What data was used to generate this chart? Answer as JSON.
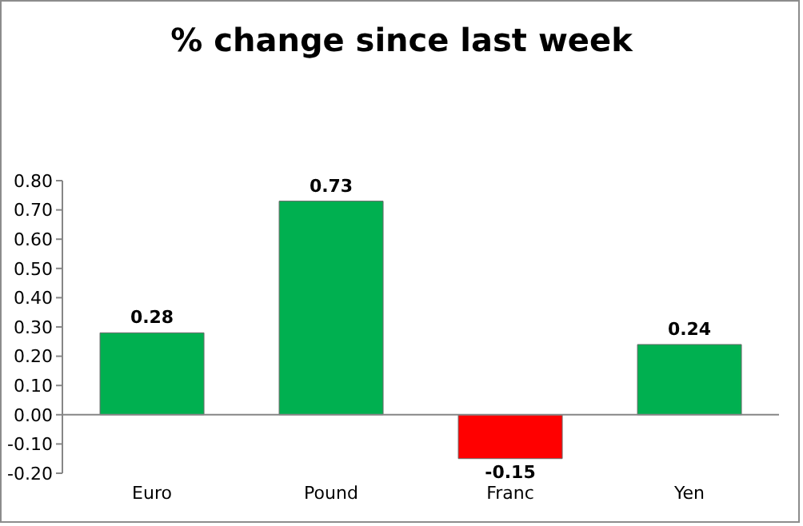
{
  "chart_data": {
    "type": "bar",
    "title": "% change since last week",
    "categories": [
      "Euro",
      "Pound",
      "Franc",
      "Yen"
    ],
    "values": [
      0.28,
      0.73,
      -0.15,
      0.24
    ],
    "colors": [
      "#00b050",
      "#00b050",
      "#ff0000",
      "#00b050"
    ],
    "ylim": [
      -0.2,
      0.8
    ],
    "yticks": [
      {
        "value": -0.2,
        "label": "-0.20"
      },
      {
        "value": -0.1,
        "label": "-0.10"
      },
      {
        "value": 0,
        "label": "0.00"
      },
      {
        "value": 0.1,
        "label": "0.10"
      },
      {
        "value": 0.2,
        "label": "0.20"
      },
      {
        "value": 0.3,
        "label": "0.30"
      },
      {
        "value": 0.4,
        "label": "0.40"
      },
      {
        "value": 0.5,
        "label": "0.50"
      },
      {
        "value": 0.6,
        "label": "0.60"
      },
      {
        "value": 0.7,
        "label": "0.70"
      },
      {
        "value": 0.8,
        "label": "0.80"
      }
    ],
    "ref_lines": [
      {
        "axis": "y",
        "value": 0,
        "color": "#868686"
      }
    ],
    "data_labels": true
  }
}
